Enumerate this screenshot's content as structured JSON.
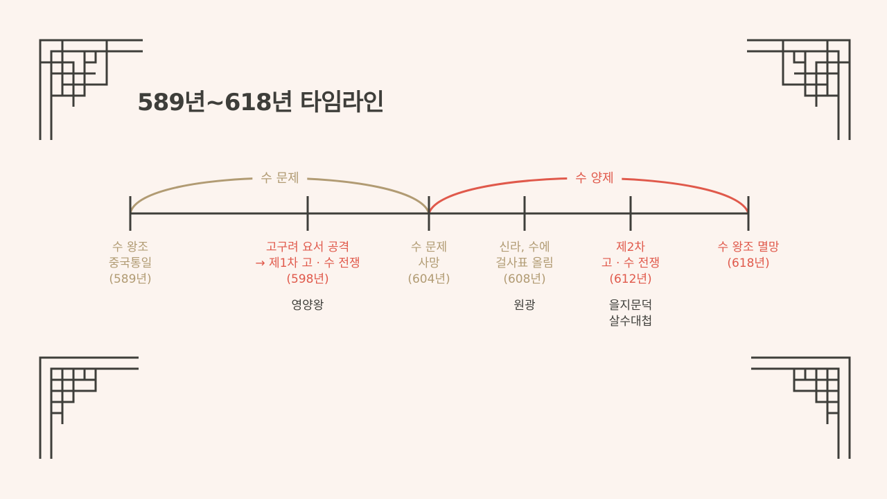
{
  "title": "589년~618년 타임라인",
  "colors": {
    "background": "#fcf4ef",
    "text": "#3e3e3a",
    "sui_wendi": "#b19b73",
    "sui_yangdi": "#e0594b"
  },
  "eras": [
    {
      "label": "수 문제",
      "color": "gold"
    },
    {
      "label": "수 양제",
      "color": "red"
    }
  ],
  "events": [
    {
      "lines": [
        "수 왕조",
        "중국통일",
        "(589년)"
      ],
      "color": "gold",
      "note": []
    },
    {
      "lines": [
        "고구려 요서 공격",
        "→ 제1차 고 · 수 전쟁",
        "(598년)"
      ],
      "color": "red",
      "note": [
        "영양왕"
      ]
    },
    {
      "lines": [
        "수 문제",
        "사망",
        "(604년)"
      ],
      "color": "gold",
      "note": []
    },
    {
      "lines": [
        "신라, 수에",
        "걸사표 올림",
        "(608년)"
      ],
      "color": "gold",
      "note": [
        "원광"
      ]
    },
    {
      "lines": [
        "제2차",
        "고 · 수 전쟁",
        "(612년)"
      ],
      "color": "red",
      "note": [
        "을지문덕",
        "살수대첩"
      ]
    },
    {
      "lines": [
        "수 왕조 멸망",
        "(618년)"
      ],
      "color": "red",
      "note": []
    }
  ]
}
